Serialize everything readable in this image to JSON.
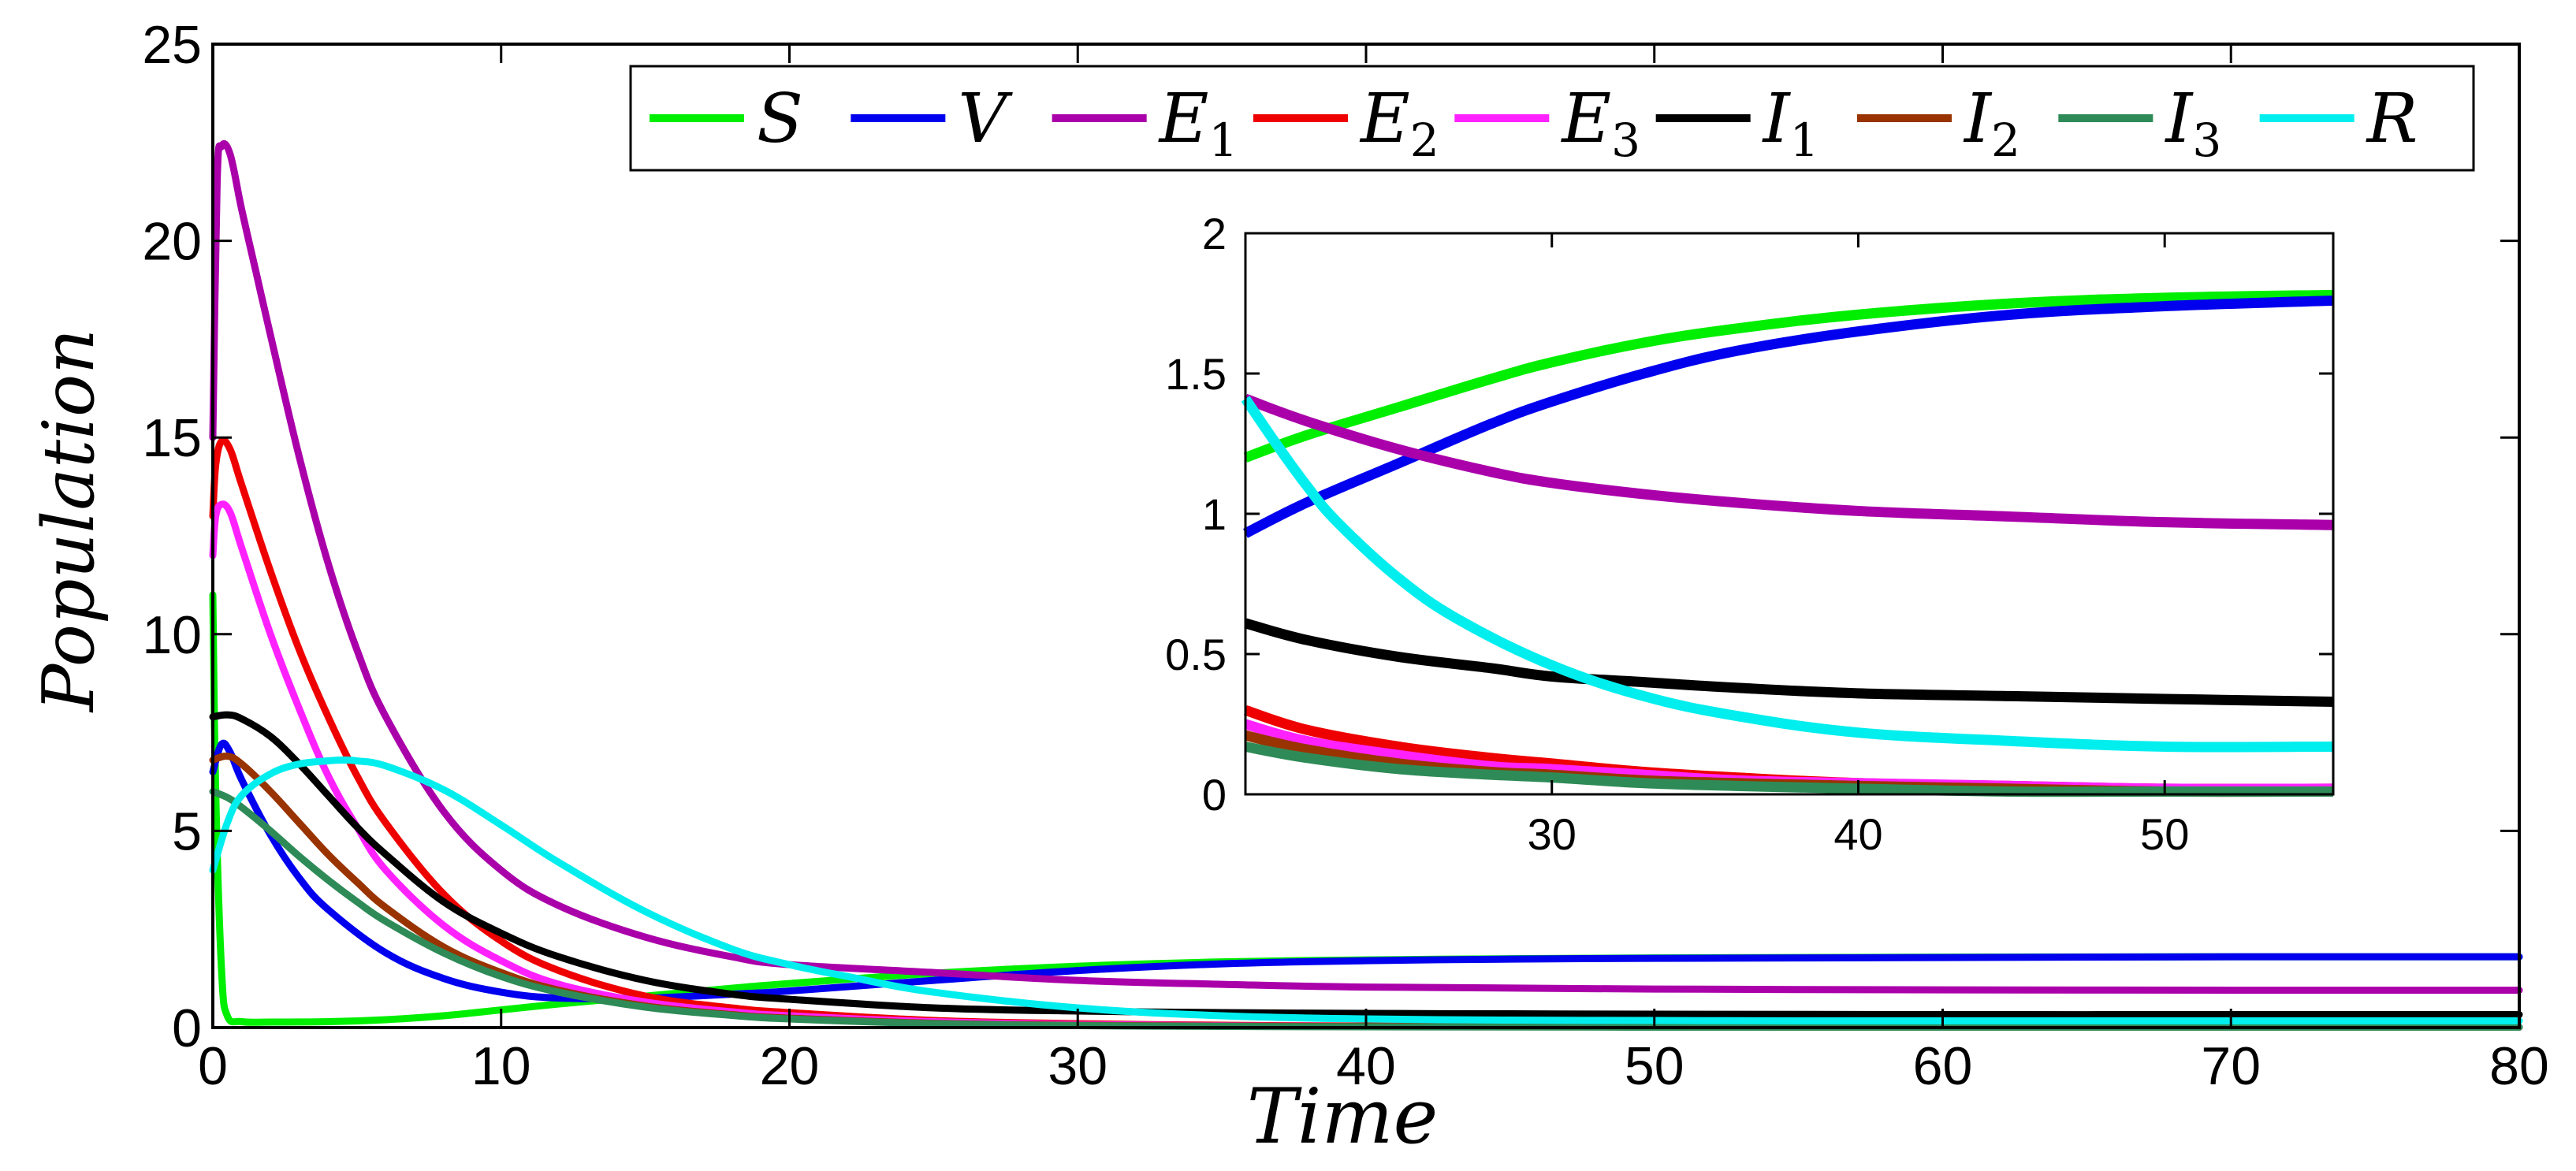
{
  "chart_data": [
    {
      "type": "line",
      "panel": "main",
      "title": "",
      "xlabel": "Time",
      "ylabel": "Population",
      "xlim": [
        0,
        80
      ],
      "ylim": [
        0,
        25
      ],
      "xticks": [
        0,
        10,
        20,
        30,
        40,
        50,
        60,
        70,
        80
      ],
      "yticks": [
        0,
        5,
        10,
        15,
        20,
        25
      ],
      "grid": false,
      "legend": {
        "placement": "top",
        "orientation": "horizontal",
        "entries": [
          {
            "base": "S",
            "sub": ""
          },
          {
            "base": "V",
            "sub": ""
          },
          {
            "base": "E",
            "sub": "1"
          },
          {
            "base": "E",
            "sub": "2"
          },
          {
            "base": "E",
            "sub": "3"
          },
          {
            "base": "I",
            "sub": "1"
          },
          {
            "base": "I",
            "sub": "2"
          },
          {
            "base": "I",
            "sub": "3"
          },
          {
            "base": "R",
            "sub": ""
          }
        ]
      },
      "series": [
        {
          "name": "S",
          "color": "#00ee00",
          "x": [
            0,
            0.1,
            0.3,
            0.5,
            1,
            2,
            4,
            6,
            8,
            10,
            12,
            15,
            18,
            20,
            25,
            30,
            35,
            40,
            45,
            50,
            55,
            60,
            70,
            80
          ],
          "y": [
            11.0,
            6.0,
            1.5,
            0.3,
            0.15,
            0.14,
            0.15,
            0.2,
            0.3,
            0.45,
            0.6,
            0.8,
            1.0,
            1.12,
            1.38,
            1.56,
            1.67,
            1.72,
            1.75,
            1.77,
            1.78,
            1.79,
            1.8,
            1.8
          ]
        },
        {
          "name": "V",
          "color": "#0000ee",
          "x": [
            0,
            0.3,
            0.6,
            1,
            2,
            3,
            4,
            6,
            8,
            10,
            12,
            15,
            18,
            20,
            25,
            30,
            35,
            40,
            45,
            50,
            55,
            60,
            70,
            80
          ],
          "y": [
            6.5,
            7.2,
            7.0,
            6.3,
            4.9,
            3.8,
            3.0,
            1.9,
            1.25,
            0.9,
            0.75,
            0.75,
            0.85,
            0.93,
            1.2,
            1.45,
            1.62,
            1.7,
            1.74,
            1.76,
            1.77,
            1.78,
            1.8,
            1.8
          ]
        },
        {
          "name": "E1",
          "color": "#aa00aa",
          "x": [
            0,
            0.15,
            0.3,
            0.6,
            1,
            1.5,
            2,
            3,
            4,
            5,
            6,
            8,
            10,
            12,
            15,
            18,
            20,
            25,
            30,
            35,
            40,
            50,
            60,
            70,
            80
          ],
          "y": [
            15,
            21.5,
            22.4,
            22.2,
            20.8,
            19.2,
            17.6,
            14.5,
            11.8,
            9.6,
            7.9,
            5.5,
            4.0,
            3.1,
            2.3,
            1.8,
            1.6,
            1.4,
            1.2,
            1.1,
            1.03,
            0.98,
            0.96,
            0.95,
            0.95
          ]
        },
        {
          "name": "E2",
          "color": "#ee0000",
          "x": [
            0,
            0.1,
            0.3,
            0.6,
            1,
            2,
            3,
            4,
            5,
            6,
            8,
            10,
            12,
            15,
            18,
            20,
            25,
            30,
            35,
            40,
            50,
            60,
            80
          ],
          "y": [
            13.0,
            14.3,
            14.9,
            14.7,
            13.8,
            11.6,
            9.6,
            7.9,
            6.4,
            5.2,
            3.4,
            2.2,
            1.45,
            0.8,
            0.5,
            0.38,
            0.18,
            0.1,
            0.06,
            0.04,
            0.02,
            0.01,
            0.01
          ]
        },
        {
          "name": "E3",
          "color": "#ff22ff",
          "x": [
            0,
            0.1,
            0.3,
            0.6,
            1,
            2,
            3,
            4,
            5,
            6,
            8,
            10,
            12,
            15,
            18,
            20,
            25,
            30,
            35,
            40,
            50,
            60,
            80
          ],
          "y": [
            12.0,
            13.0,
            13.3,
            13.1,
            12.2,
            10.0,
            8.1,
            6.4,
            5.1,
            4.0,
            2.6,
            1.7,
            1.1,
            0.65,
            0.4,
            0.3,
            0.15,
            0.08,
            0.05,
            0.03,
            0.02,
            0.01,
            0.01
          ]
        },
        {
          "name": "I1",
          "color": "#000000",
          "x": [
            0,
            0.5,
            1,
            2,
            3,
            4,
            5,
            6,
            8,
            10,
            12,
            15,
            18,
            20,
            25,
            30,
            35,
            40,
            45,
            50,
            60,
            70,
            80
          ],
          "y": [
            7.9,
            7.95,
            7.85,
            7.4,
            6.7,
            5.9,
            5.1,
            4.4,
            3.2,
            2.4,
            1.8,
            1.2,
            0.85,
            0.72,
            0.5,
            0.42,
            0.38,
            0.36,
            0.35,
            0.34,
            0.33,
            0.33,
            0.33
          ]
        },
        {
          "name": "I2",
          "color": "#993300",
          "x": [
            0,
            0.5,
            1,
            2,
            3,
            4,
            5,
            6,
            8,
            10,
            12,
            15,
            18,
            20,
            25,
            30,
            35,
            40,
            50,
            60,
            80
          ],
          "y": [
            6.8,
            6.9,
            6.7,
            6.0,
            5.2,
            4.4,
            3.7,
            3.05,
            2.05,
            1.4,
            0.95,
            0.55,
            0.33,
            0.24,
            0.11,
            0.06,
            0.04,
            0.03,
            0.02,
            0.01,
            0.01
          ]
        },
        {
          "name": "I3",
          "color": "#2e8b57",
          "x": [
            0,
            0.5,
            1,
            2,
            3,
            4,
            5,
            6,
            8,
            10,
            12,
            15,
            18,
            20,
            25,
            30,
            35,
            40,
            50,
            60,
            80
          ],
          "y": [
            6.0,
            5.85,
            5.6,
            5.0,
            4.35,
            3.75,
            3.2,
            2.7,
            1.9,
            1.3,
            0.9,
            0.52,
            0.31,
            0.22,
            0.1,
            0.05,
            0.03,
            0.02,
            0.01,
            0.01,
            0.01
          ]
        },
        {
          "name": "R",
          "color": "#00eeee",
          "x": [
            0,
            0.5,
            1,
            2,
            3,
            4,
            4.5,
            5,
            6,
            8,
            10,
            12,
            15,
            18,
            20,
            22,
            25,
            30,
            35,
            40,
            45,
            50,
            55,
            60,
            70,
            80
          ],
          "y": [
            4.0,
            5.2,
            5.9,
            6.45,
            6.7,
            6.78,
            6.8,
            6.78,
            6.65,
            6.05,
            5.15,
            4.2,
            2.95,
            2.0,
            1.6,
            1.3,
            0.9,
            0.5,
            0.3,
            0.22,
            0.19,
            0.18,
            0.17,
            0.17,
            0.17,
            0.17
          ]
        }
      ]
    },
    {
      "type": "line",
      "panel": "inset",
      "title": "",
      "xlabel": "",
      "ylabel": "",
      "xlim": [
        20,
        55.5
      ],
      "ylim": [
        0,
        2
      ],
      "xticks": [
        30,
        40,
        50
      ],
      "yticks": [
        0,
        0.5,
        1,
        1.5,
        2
      ],
      "ytick_labels": [
        "0",
        "0.5",
        "1",
        "1.5",
        "2"
      ],
      "grid": false,
      "series": [
        {
          "name": "S",
          "color": "#00ee00",
          "x": [
            20,
            22,
            25,
            28,
            30,
            33,
            36,
            40,
            45,
            50,
            55.5
          ],
          "y": [
            1.2,
            1.28,
            1.38,
            1.48,
            1.54,
            1.61,
            1.66,
            1.71,
            1.75,
            1.77,
            1.78
          ]
        },
        {
          "name": "V",
          "color": "#0000ee",
          "x": [
            20,
            22,
            25,
            28,
            30,
            33,
            36,
            40,
            45,
            50,
            55.5
          ],
          "y": [
            0.93,
            1.04,
            1.18,
            1.32,
            1.4,
            1.5,
            1.58,
            1.65,
            1.71,
            1.74,
            1.76
          ]
        },
        {
          "name": "E1",
          "color": "#aa00aa",
          "x": [
            20,
            22,
            25,
            28,
            30,
            33,
            36,
            40,
            45,
            50,
            55.5
          ],
          "y": [
            1.41,
            1.33,
            1.23,
            1.15,
            1.11,
            1.07,
            1.04,
            1.01,
            0.99,
            0.97,
            0.96
          ]
        },
        {
          "name": "I1",
          "color": "#000000",
          "x": [
            20,
            22,
            25,
            28,
            30,
            33,
            36,
            40,
            45,
            50,
            55.5
          ],
          "y": [
            0.61,
            0.55,
            0.49,
            0.45,
            0.42,
            0.4,
            0.38,
            0.36,
            0.35,
            0.34,
            0.33
          ]
        },
        {
          "name": "E2",
          "color": "#ee0000",
          "x": [
            20,
            22,
            25,
            28,
            30,
            33,
            36,
            40,
            45,
            50,
            55.5
          ],
          "y": [
            0.3,
            0.23,
            0.17,
            0.13,
            0.11,
            0.08,
            0.06,
            0.04,
            0.03,
            0.02,
            0.02
          ]
        },
        {
          "name": "E3",
          "color": "#ff22ff",
          "x": [
            20,
            22,
            25,
            28,
            30,
            33,
            36,
            40,
            45,
            50,
            55.5
          ],
          "y": [
            0.25,
            0.19,
            0.14,
            0.1,
            0.09,
            0.07,
            0.05,
            0.04,
            0.03,
            0.02,
            0.02
          ]
        },
        {
          "name": "I2",
          "color": "#993300",
          "x": [
            20,
            22,
            25,
            28,
            30,
            33,
            36,
            40,
            45,
            50,
            55.5
          ],
          "y": [
            0.21,
            0.16,
            0.11,
            0.08,
            0.07,
            0.05,
            0.04,
            0.03,
            0.02,
            0.01,
            0.01
          ]
        },
        {
          "name": "I3",
          "color": "#2e8b57",
          "x": [
            20,
            22,
            25,
            28,
            30,
            33,
            36,
            40,
            45,
            50,
            55.5
          ],
          "y": [
            0.17,
            0.13,
            0.09,
            0.07,
            0.06,
            0.04,
            0.03,
            0.02,
            0.01,
            0.01,
            0.01
          ]
        },
        {
          "name": "R",
          "color": "#00eeee",
          "x": [
            20,
            21,
            22,
            23,
            25,
            27,
            30,
            33,
            36,
            40,
            45,
            50,
            55.5
          ],
          "y": [
            1.41,
            1.25,
            1.1,
            0.97,
            0.77,
            0.62,
            0.46,
            0.35,
            0.28,
            0.22,
            0.19,
            0.17,
            0.17
          ]
        }
      ]
    }
  ]
}
